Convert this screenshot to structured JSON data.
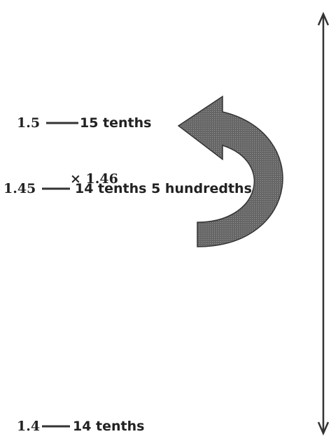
{
  "rows": [
    {
      "number": "1.5",
      "label": "15 tenths"
    },
    {
      "number": "1.45",
      "label": "14 tenths 5 hundredths"
    },
    {
      "number": "1.4",
      "label": "14 tenths"
    }
  ],
  "annotation": "× 1.46"
}
